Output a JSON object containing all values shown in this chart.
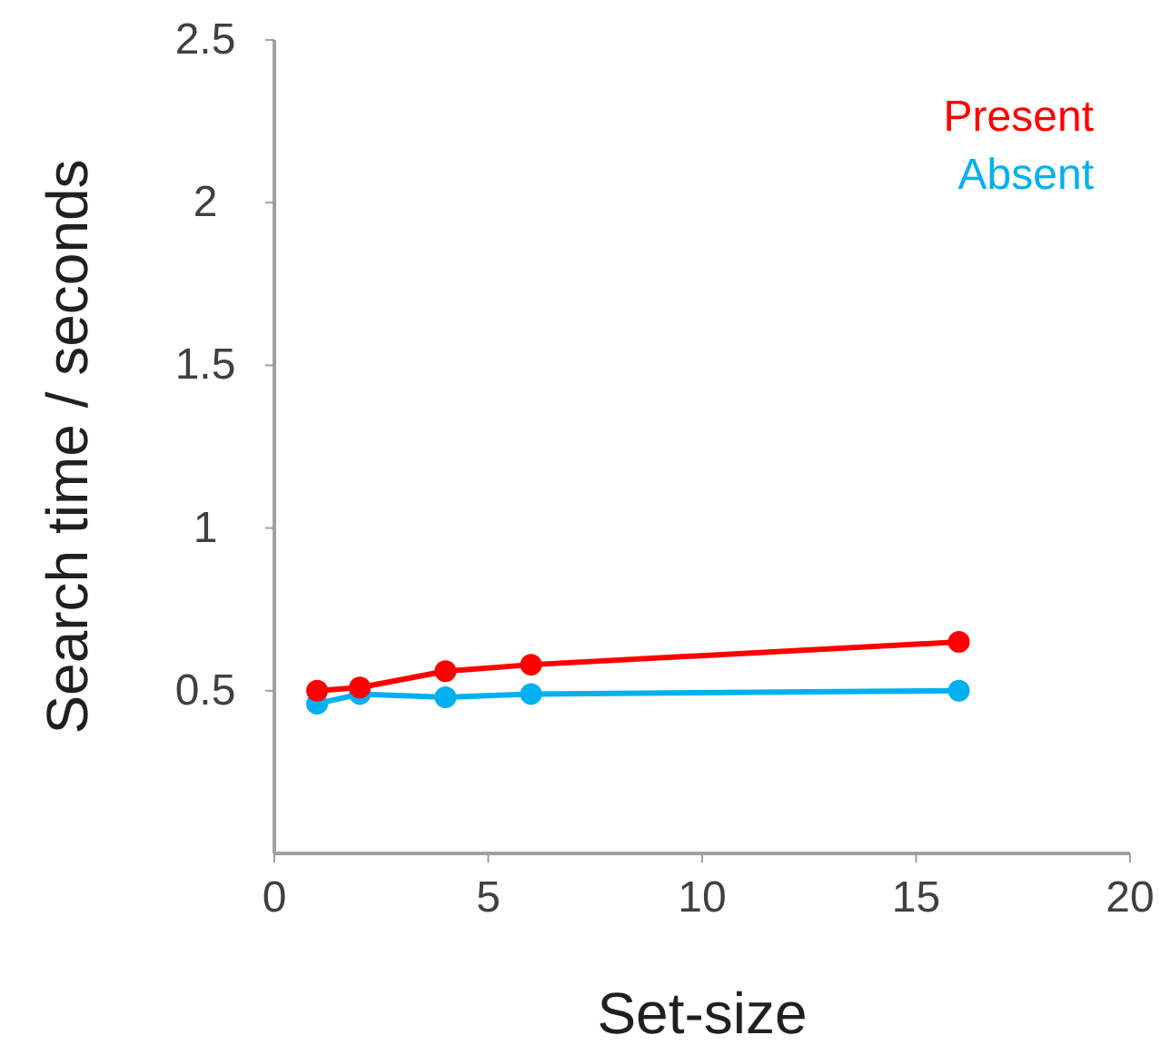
{
  "chart_data": {
    "type": "line",
    "xlabel": "Set-size",
    "ylabel": "Search time / seconds",
    "x": [
      1,
      2,
      4,
      6,
      16
    ],
    "series": [
      {
        "name": "Present",
        "color": "#ff0000",
        "values": [
          0.5,
          0.51,
          0.56,
          0.58,
          0.65
        ]
      },
      {
        "name": "Absent",
        "color": "#00b0f0",
        "values": [
          0.46,
          0.49,
          0.48,
          0.49,
          0.5
        ]
      }
    ],
    "xlim": [
      0,
      20
    ],
    "xticks": [
      0,
      5,
      10,
      15,
      20
    ],
    "ylim": [
      0,
      2.5
    ],
    "yticks": [
      0.5,
      1,
      1.5,
      2,
      2.5
    ],
    "legend": "top right",
    "marker": "circle",
    "grid": false
  }
}
